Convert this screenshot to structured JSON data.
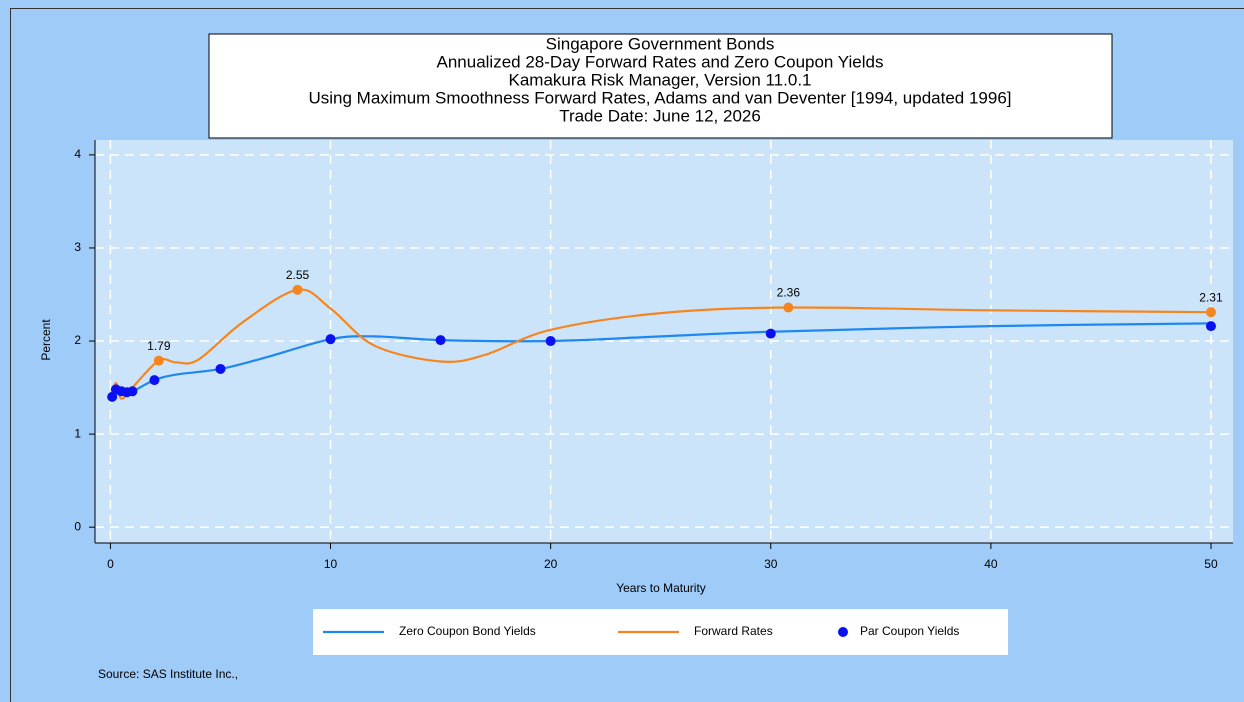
{
  "chart_data": {
    "type": "line",
    "title_lines": [
      "Singapore Government Bonds",
      "Annualized 28-Day Forward Rates and Zero Coupon Yields",
      "Kamakura Risk Manager, Version 11.0.1",
      "Using Maximum Smoothness Forward Rates, Adams and van Deventer [1994, updated 1996]",
      "Trade Date: June 12, 2026"
    ],
    "x_label": "Years to Maturity",
    "y_label": "Percent",
    "source": "Source: SAS Institute Inc.,",
    "xlim": [
      -0.7,
      51
    ],
    "ylim": [
      -0.17,
      4.16
    ],
    "xticks": [
      0,
      10,
      20,
      30,
      40,
      50
    ],
    "yticks": [
      0,
      1,
      2,
      3,
      4
    ],
    "grid": true,
    "series": [
      {
        "name": "Zero Coupon Bond Yields",
        "color": "#1e88f0",
        "style": "line",
        "x": [
          0.08,
          0.25,
          0.5,
          1,
          2,
          3,
          5,
          7,
          10,
          12,
          15,
          20,
          25,
          30,
          40,
          50
        ],
        "values": [
          1.4,
          1.43,
          1.44,
          1.46,
          1.58,
          1.64,
          1.7,
          1.82,
          2.02,
          2.05,
          2.01,
          2.0,
          2.05,
          2.1,
          2.16,
          2.19
        ]
      },
      {
        "name": "Forward Rates",
        "color": "#f5861f",
        "style": "line",
        "x": [
          0.08,
          0.25,
          0.5,
          1,
          2.2,
          3,
          4,
          6,
          8.5,
          10,
          12,
          15,
          17,
          20,
          25,
          30.8,
          40,
          50
        ],
        "values": [
          1.4,
          1.55,
          1.38,
          1.5,
          1.79,
          1.77,
          1.8,
          2.2,
          2.55,
          2.35,
          1.95,
          1.78,
          1.85,
          2.12,
          2.3,
          2.36,
          2.33,
          2.31
        ]
      },
      {
        "name": "Par Coupon Yields",
        "color": "#0a10f0",
        "style": "dots",
        "x": [
          0.08,
          0.25,
          0.5,
          0.75,
          1,
          2,
          5,
          10,
          15,
          20,
          30,
          50
        ],
        "values": [
          1.4,
          1.48,
          1.46,
          1.45,
          1.46,
          1.58,
          1.7,
          2.02,
          2.01,
          2.0,
          2.08,
          2.16
        ]
      }
    ],
    "annotations": [
      {
        "x": 2.2,
        "y": 1.79
      },
      {
        "x": 8.5,
        "y": 2.55
      },
      {
        "x": 30.8,
        "y": 2.36
      },
      {
        "x": 50,
        "y": 2.31
      }
    ]
  }
}
